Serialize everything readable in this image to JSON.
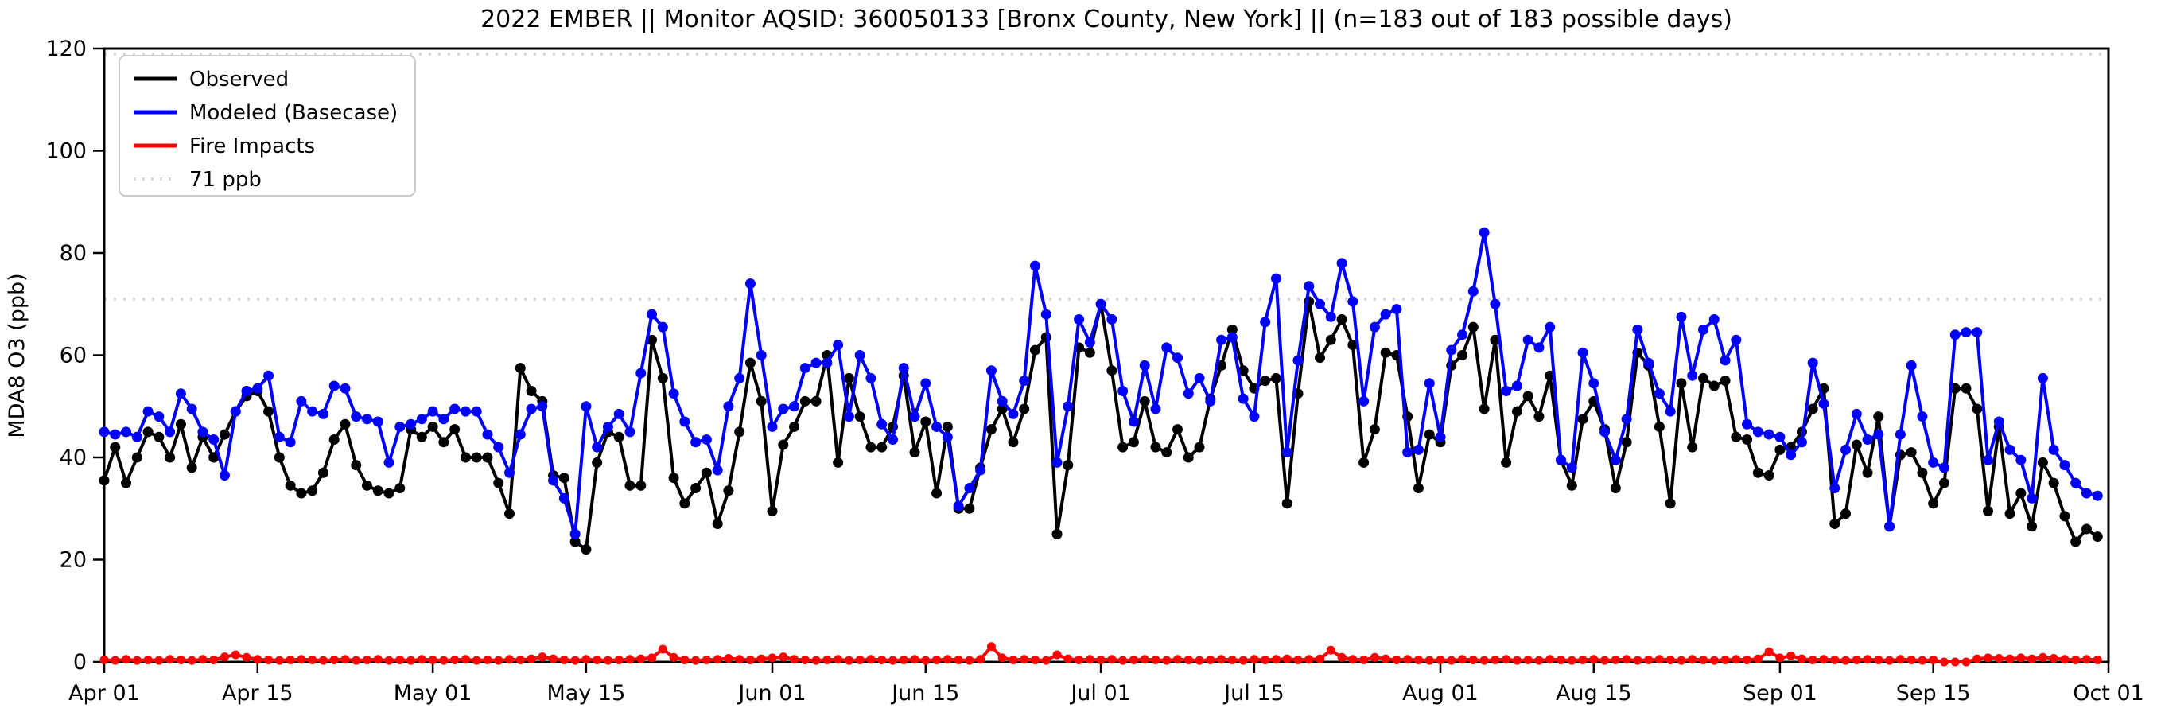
{
  "title": "2022 EMBER || Monitor AQSID: 360050133 [Bronx County, New York] || (n=183 out of 183 possible days)",
  "axes": {
    "ylabel": "MDA8 O3 (ppb)",
    "ylim": [
      0,
      120
    ],
    "yticks": [
      0,
      20,
      40,
      60,
      80,
      100,
      120
    ],
    "xtick_labels": [
      "Apr 01",
      "Apr 15",
      "May 01",
      "May 15",
      "Jun 01",
      "Jun 15",
      "Jul 01",
      "Jul 15",
      "Aug 01",
      "Aug 15",
      "Sep 01",
      "Sep 15",
      "Oct 01"
    ],
    "xtick_days": [
      0,
      14,
      30,
      44,
      61,
      75,
      91,
      105,
      122,
      136,
      153,
      167,
      183
    ],
    "xlim_days": [
      0,
      183
    ]
  },
  "legend": {
    "items": [
      {
        "label": "Observed",
        "color": "#000000",
        "style": "solid"
      },
      {
        "label": "Modeled (Basecase)",
        "color": "#0000ff",
        "style": "solid"
      },
      {
        "label": "Fire Impacts",
        "color": "#ff0000",
        "style": "solid"
      },
      {
        "label": "71 ppb",
        "color": "#d9d9d9",
        "style": "dotted"
      }
    ]
  },
  "chart_data": {
    "type": "line",
    "title": "2022 EMBER || Monitor AQSID: 360050133 [Bronx County, New York] || (n=183 out of 183 possible days)",
    "xlabel": "",
    "ylabel": "MDA8 O3 (ppb)",
    "ylim": [
      0,
      120
    ],
    "x_unit": "days since Apr 01 2022 (daily values, n=183)",
    "x_range_days": [
      0,
      183
    ],
    "grid": false,
    "legend_position": "upper left",
    "reference_lines": [
      {
        "value": 71,
        "label": "71 ppb",
        "color": "#d9d9d9"
      },
      {
        "value": 120,
        "label": "",
        "color": "#d9d9d9"
      }
    ],
    "series": [
      {
        "name": "Observed",
        "color": "#000000",
        "marker": "circle",
        "values": [
          35.5,
          42,
          35,
          40,
          45,
          44,
          40,
          46.5,
          38,
          44,
          40,
          44.5,
          49,
          52,
          53,
          49,
          40,
          34.5,
          33,
          33.5,
          37,
          43.5,
          46.5,
          38.5,
          34.5,
          33.5,
          33,
          34,
          45.5,
          44,
          46,
          43,
          45.5,
          40,
          40,
          40,
          35,
          29,
          57.5,
          53,
          51,
          36.5,
          36,
          23.5,
          22,
          39,
          45,
          44,
          34.5,
          34.5,
          63,
          55.5,
          36,
          31,
          34,
          37,
          27,
          33.5,
          45,
          58.5,
          51,
          29.5,
          42.5,
          46,
          51,
          51,
          60,
          39,
          55.5,
          48,
          42,
          42,
          46,
          56,
          41,
          47,
          33,
          46,
          30,
          30,
          38,
          45.5,
          49.5,
          43,
          49.5,
          61,
          63.5,
          25,
          38.5,
          61.5,
          60.5,
          70,
          57,
          42,
          43,
          51,
          42,
          41,
          45.5,
          40,
          42,
          51.5,
          58,
          65,
          57,
          53.5,
          55,
          55.5,
          31,
          52.5,
          70.5,
          59.5,
          63,
          67,
          62,
          39,
          45.5,
          60.5,
          60,
          48,
          34,
          44.5,
          43,
          58,
          60,
          65.5,
          49.5,
          63,
          39,
          49,
          52,
          48,
          56,
          39.5,
          34.5,
          47.5,
          51,
          45.5,
          34,
          43,
          60.5,
          58,
          46,
          31,
          54.5,
          42,
          55.5,
          54,
          55,
          44,
          43.5,
          37,
          36.5,
          41.5,
          42,
          45,
          49.5,
          53.5,
          27,
          29,
          42.5,
          37,
          48,
          26.5,
          40.5,
          41,
          37,
          31,
          35,
          53.5,
          53.5,
          49.5,
          29.5,
          46,
          29,
          33,
          26.5,
          39,
          35,
          28.5,
          23.5,
          26,
          24.5
        ]
      },
      {
        "name": "Modeled (Basecase)",
        "color": "#0000ff",
        "marker": "circle",
        "values": [
          45,
          44.5,
          45,
          44,
          49,
          48,
          45,
          52.5,
          49.5,
          45,
          43.5,
          36.5,
          49,
          53,
          53.5,
          56,
          44,
          43,
          51,
          49,
          48.5,
          54,
          53.5,
          48,
          47.5,
          47,
          39,
          46,
          46.5,
          47.5,
          49,
          47.5,
          49.5,
          49,
          49,
          44.5,
          42,
          37,
          44.5,
          49.5,
          50,
          35.5,
          32,
          25,
          50,
          42,
          46,
          48.5,
          45,
          56.5,
          68,
          65.5,
          52.5,
          47,
          43,
          43.5,
          37.5,
          50,
          55.5,
          74,
          60,
          46,
          49.5,
          50,
          57.5,
          58.5,
          58.5,
          62,
          48,
          60,
          55.5,
          46.5,
          43.5,
          57.5,
          48,
          54.5,
          46,
          44,
          30.5,
          34,
          37.5,
          57,
          51,
          48.5,
          55,
          77.5,
          68,
          39,
          50,
          67,
          62.5,
          70,
          67,
          53,
          47,
          58,
          49.5,
          61.5,
          59.5,
          52.5,
          55.5,
          51,
          63,
          63.5,
          51.5,
          48,
          66.5,
          75,
          41,
          59,
          73.5,
          70,
          67.5,
          78,
          70.5,
          51,
          65.5,
          68,
          69,
          41,
          41.5,
          54.5,
          44,
          61,
          64,
          72.5,
          84,
          70,
          53,
          54,
          63,
          61.5,
          65.5,
          39.5,
          38,
          60.5,
          54.5,
          45,
          39.5,
          47.5,
          65,
          58.5,
          52.5,
          49,
          67.5,
          56,
          65,
          67,
          59,
          63,
          46.5,
          45,
          44.5,
          44,
          40.5,
          43,
          58.5,
          50.5,
          34,
          41.5,
          48.5,
          43.5,
          44.5,
          26.5,
          44.5,
          58,
          48,
          39,
          38,
          64,
          64.5,
          64.5,
          39.5,
          47,
          41.5,
          39.5,
          32,
          55.5,
          41.5,
          38.5,
          35,
          33,
          32.5
        ]
      },
      {
        "name": "Fire Impacts",
        "color": "#ff0000",
        "marker": "circle",
        "values": [
          0.4,
          0.3,
          0.5,
          0.3,
          0.4,
          0.3,
          0.5,
          0.4,
          0.3,
          0.5,
          0.4,
          1.0,
          1.4,
          0.9,
          0.5,
          0.4,
          0.3,
          0.4,
          0.5,
          0.4,
          0.3,
          0.4,
          0.5,
          0.3,
          0.4,
          0.5,
          0.3,
          0.4,
          0.3,
          0.5,
          0.4,
          0.3,
          0.4,
          0.5,
          0.3,
          0.4,
          0.3,
          0.5,
          0.4,
          0.6,
          1.0,
          0.6,
          0.4,
          0.3,
          0.5,
          0.4,
          0.3,
          0.4,
          0.5,
          0.6,
          0.8,
          2.5,
          0.9,
          0.4,
          0.3,
          0.4,
          0.5,
          0.7,
          0.5,
          0.4,
          0.6,
          0.8,
          1.0,
          0.5,
          0.4,
          0.3,
          0.4,
          0.5,
          0.3,
          0.4,
          0.5,
          0.4,
          0.3,
          0.4,
          0.5,
          0.3,
          0.4,
          0.5,
          0.4,
          0.3,
          0.5,
          3.0,
          0.8,
          0.4,
          0.5,
          0.4,
          0.3,
          1.4,
          0.6,
          0.4,
          0.5,
          0.4,
          0.5,
          0.3,
          0.4,
          0.5,
          0.4,
          0.3,
          0.5,
          0.4,
          0.3,
          0.4,
          0.5,
          0.4,
          0.3,
          0.5,
          0.4,
          0.5,
          0.6,
          0.4,
          0.5,
          0.6,
          2.3,
          0.9,
          0.5,
          0.4,
          0.9,
          0.6,
          0.4,
          0.5,
          0.4,
          0.3,
          0.4,
          0.3,
          0.5,
          0.4,
          0.3,
          0.4,
          0.5,
          0.3,
          0.4,
          0.3,
          0.5,
          0.4,
          0.3,
          0.4,
          0.5,
          0.3,
          0.4,
          0.5,
          0.3,
          0.4,
          0.5,
          0.4,
          0.3,
          0.5,
          0.4,
          0.3,
          0.4,
          0.5,
          0.4,
          0.6,
          2.0,
          0.8,
          1.2,
          0.6,
          0.4,
          0.5,
          0.4,
          0.3,
          0.4,
          0.5,
          0.4,
          0.3,
          0.5,
          0.4,
          0.3,
          0.4,
          0.0,
          0.0,
          0.0,
          0.6,
          0.8,
          0.7,
          0.6,
          0.8,
          0.6,
          0.9,
          0.7,
          0.5,
          0.4,
          0.5,
          0.4
        ]
      }
    ]
  }
}
